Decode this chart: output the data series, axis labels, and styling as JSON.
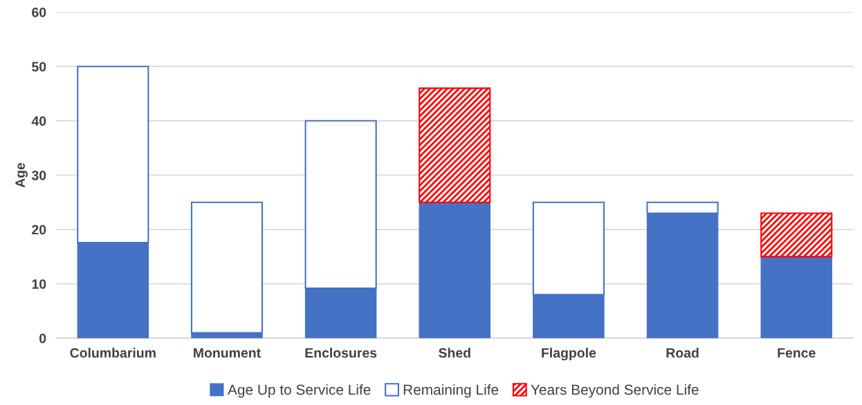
{
  "chart_data": {
    "type": "bar",
    "ylabel": "Age",
    "stacked": true,
    "categories": [
      "Columbarium",
      "Monument",
      "Enclosures",
      "Shed",
      "Flagpole",
      "Road",
      "Fence"
    ],
    "series": [
      {
        "name": "Age Up to Service Life",
        "color": "#4472c4",
        "values": [
          17.6,
          1,
          9.2,
          25,
          8,
          23,
          15
        ]
      },
      {
        "name": "Remaining Life",
        "color": "#4472c4",
        "values": [
          32.4,
          24,
          30.8,
          0,
          17,
          2,
          0
        ]
      },
      {
        "name": "Years Beyond Service Life",
        "color": "#ff0000",
        "values": [
          0,
          0,
          0,
          21,
          0,
          0,
          8
        ]
      }
    ],
    "ylim": [
      0,
      60
    ],
    "yticks": [
      0,
      10,
      20,
      30,
      40,
      50,
      60
    ],
    "grid": "y",
    "legend": "bottom"
  }
}
